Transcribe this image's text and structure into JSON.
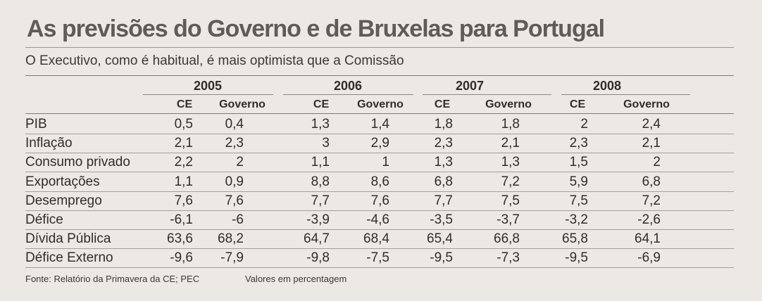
{
  "title": "As previsões do Governo e de Bruxelas para Portugal",
  "subtitle": "O Executivo, como é habitual, é mais optimista que a Comissão",
  "years": [
    "2005",
    "2006",
    "2007",
    "2008"
  ],
  "subheaders": [
    "CE",
    "Governo"
  ],
  "rows": [
    {
      "label": "PIB",
      "values": [
        "0,5",
        "0,4",
        "1,3",
        "1,4",
        "1,8",
        "1,8",
        "2",
        "2,4"
      ]
    },
    {
      "label": "Inflação",
      "values": [
        "2,1",
        "2,3",
        "3",
        "2,9",
        "2,3",
        "2,1",
        "2,3",
        "2,1"
      ]
    },
    {
      "label": "Consumo privado",
      "values": [
        "2,2",
        "2",
        "1,1",
        "1",
        "1,3",
        "1,3",
        "1,5",
        "2"
      ]
    },
    {
      "label": "Exportações",
      "values": [
        "1,1",
        "0,9",
        "8,8",
        "8,6",
        "6,8",
        "7,2",
        "5,9",
        "6,8"
      ]
    },
    {
      "label": "Desemprego",
      "values": [
        "7,6",
        "7,6",
        "7,7",
        "7,6",
        "7,7",
        "7,5",
        "7,5",
        "7,2"
      ]
    },
    {
      "label": "Défice",
      "values": [
        "-6,1",
        "-6",
        "-3,9",
        "-4,6",
        "-3,5",
        "-3,7",
        "-3,2",
        "-2,6"
      ]
    },
    {
      "label": "Dívida Pública",
      "values": [
        "63,6",
        "68,2",
        "64,7",
        "68,4",
        "65,4",
        "66,8",
        "65,8",
        "64,1"
      ]
    },
    {
      "label": "Défice Externo",
      "values": [
        "-9,6",
        "-7,9",
        "-9,8",
        "-7,5",
        "-9,5",
        "-7,3",
        "-9,5",
        "-6,9"
      ]
    }
  ],
  "footer": {
    "source": "Fonte: Relatório da Primavera da CE; PEC",
    "units": "Valores em percentagem"
  }
}
